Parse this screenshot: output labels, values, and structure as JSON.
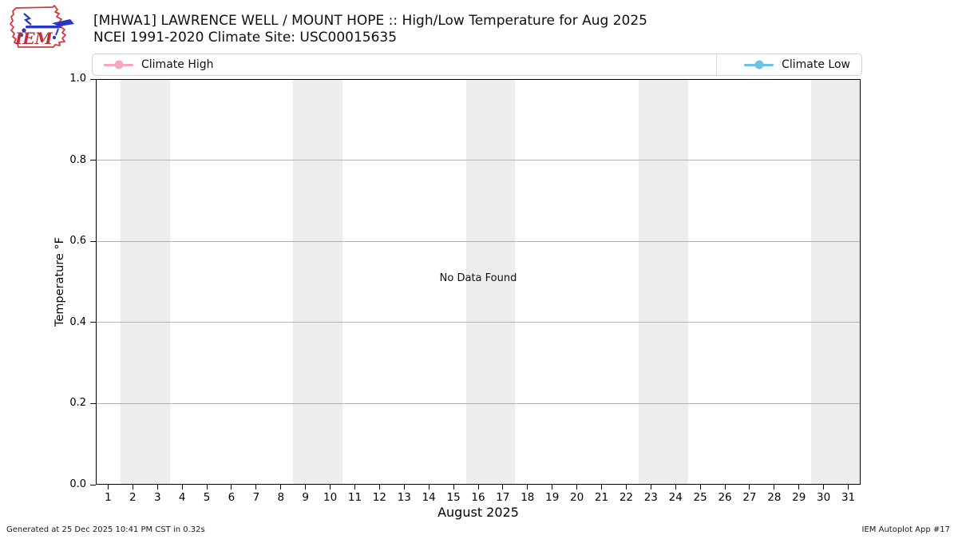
{
  "header": {
    "title": "[MHWA1] LAWRENCE WELL / MOUNT HOPE :: High/Low Temperature for Aug 2025",
    "subtitle": "NCEI 1991-2020 Climate Site: USC00015635",
    "logo_text": "IEM"
  },
  "legend": {
    "items": [
      {
        "label": "Climate High",
        "color": "#f5a8bc"
      },
      {
        "label": "Climate Low",
        "color": "#6fc3e2"
      }
    ]
  },
  "chart_data": {
    "type": "line",
    "title": "[MHWA1] LAWRENCE WELL / MOUNT HOPE :: High/Low Temperature for Aug 2025",
    "subtitle": "NCEI 1991-2020 Climate Site: USC00015635",
    "xlabel": "August 2025",
    "ylabel": "Temperature °F",
    "xlim": [
      0.5,
      31.5
    ],
    "ylim": [
      0.0,
      1.0
    ],
    "x_ticks": [
      1,
      2,
      3,
      4,
      5,
      6,
      7,
      8,
      9,
      10,
      11,
      12,
      13,
      14,
      15,
      16,
      17,
      18,
      19,
      20,
      21,
      22,
      23,
      24,
      25,
      26,
      27,
      28,
      29,
      30,
      31
    ],
    "y_ticks": [
      "0.0",
      "0.2",
      "0.4",
      "0.6",
      "0.8",
      "1.0"
    ],
    "grid": "horizontal",
    "legend_position": "top, spanning plot width (high left, low right)",
    "series": [
      {
        "name": "Climate High",
        "color": "#f5a8bc",
        "values": []
      },
      {
        "name": "Climate Low",
        "color": "#6fc3e2",
        "values": []
      }
    ],
    "no_data_label": "No Data Found",
    "weekend_bands_x": [
      [
        1.5,
        3.5
      ],
      [
        8.5,
        10.5
      ],
      [
        15.5,
        17.5
      ],
      [
        22.5,
        24.5
      ],
      [
        29.5,
        31.5
      ]
    ],
    "band_color": "#ededed"
  },
  "footer": {
    "generated": "Generated at 25 Dec 2025 10:41 PM CST in 0.32s",
    "app": "IEM Autoplot App #17"
  }
}
